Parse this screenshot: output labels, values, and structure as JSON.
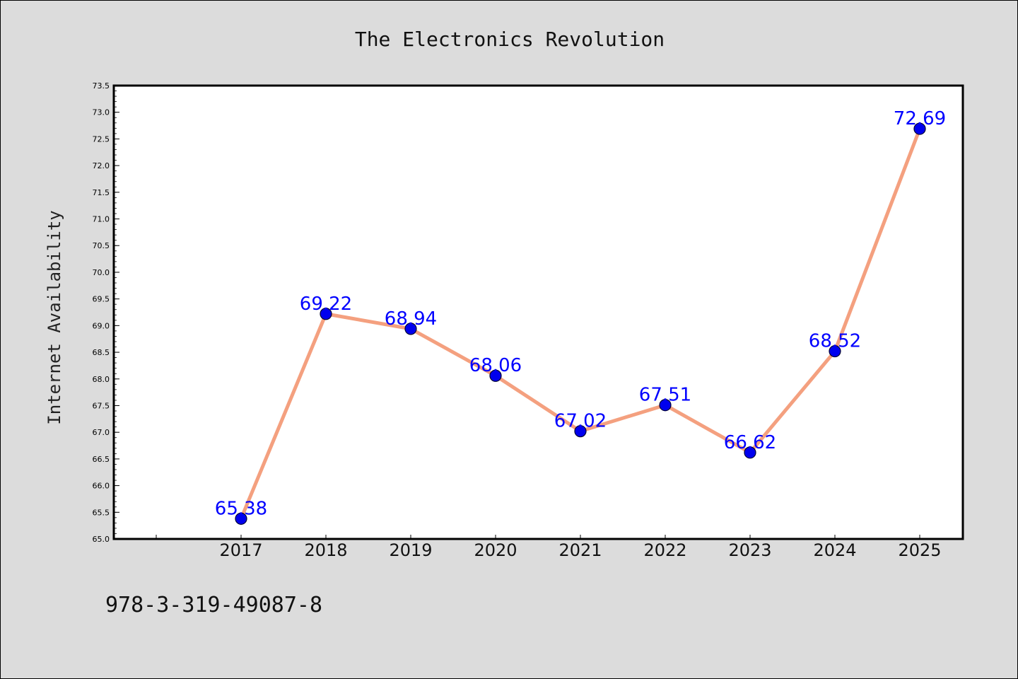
{
  "chart_data": {
    "type": "line",
    "title": "The Electronics Revolution",
    "xlabel": "",
    "ylabel": "Internet Availability",
    "categories": [
      "2017",
      "2018",
      "2019",
      "2020",
      "2021",
      "2022",
      "2023",
      "2024",
      "2025"
    ],
    "series": [
      {
        "values": [
          65.38,
          69.22,
          68.94,
          68.06,
          67.02,
          67.51,
          66.62,
          68.52,
          72.69
        ],
        "labels": [
          "65.38",
          "69.22",
          "68.94",
          "68.06",
          "67.02",
          "67.51",
          "66.62",
          "68.52",
          "72.69"
        ]
      }
    ],
    "ylim": [
      65.0,
      73.5
    ],
    "yticks": [
      "65.0",
      "65.5",
      "66.0",
      "66.5",
      "67.0",
      "67.5",
      "68.0",
      "68.5",
      "69.0",
      "69.5",
      "70.0",
      "70.5",
      "71.0",
      "71.5",
      "72.0",
      "72.5",
      "73.0",
      "73.5"
    ],
    "grid": false,
    "colors": {
      "line": "#f4a07f",
      "marker": "#0000ee",
      "marker_edge": "#000033",
      "data_label": "#0000ff",
      "background": "#dcdcdc",
      "plot_area": "#ffffff"
    }
  },
  "footer": {
    "isbn": "978-3-319-49087-8"
  }
}
